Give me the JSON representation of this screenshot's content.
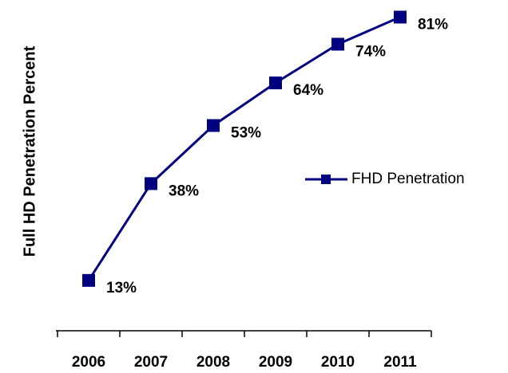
{
  "chart_data": {
    "type": "line",
    "y_label": "Full HD Penetration Percent",
    "categories": [
      "2006",
      "2007",
      "2008",
      "2009",
      "2010",
      "2011"
    ],
    "series": [
      {
        "name": "FHD Penetration",
        "color": "#000080",
        "values": [
          13,
          38,
          53,
          64,
          74,
          81
        ],
        "value_labels": [
          "13%",
          "38%",
          "53%",
          "64%",
          "74%",
          "81%"
        ]
      }
    ],
    "ylim": [
      0,
      85
    ],
    "legend": "right"
  }
}
